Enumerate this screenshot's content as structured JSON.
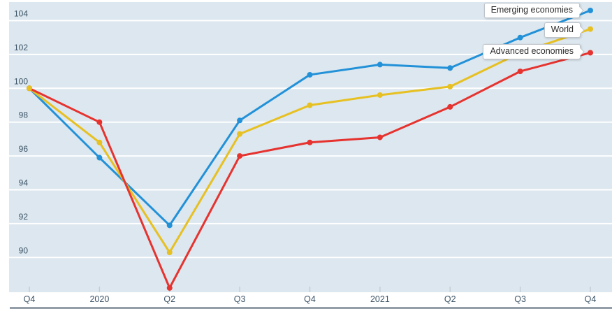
{
  "chart_data": {
    "type": "line",
    "title": "",
    "categories": [
      "Q4",
      "2020",
      "Q2",
      "Q3",
      "Q4",
      "2021",
      "Q2",
      "Q3",
      "Q4"
    ],
    "series": [
      {
        "name": "Emerging economies",
        "color": "#2291d8",
        "values": [
          100,
          95.9,
          91.9,
          98.1,
          100.8,
          101.4,
          101.2,
          103.0,
          104.6
        ]
      },
      {
        "name": "World",
        "color": "#e7c021",
        "values": [
          100,
          96.8,
          90.3,
          97.3,
          99.0,
          99.6,
          100.1,
          102.1,
          103.5
        ]
      },
      {
        "name": "Advanced economies",
        "color": "#e6332f",
        "values": [
          100,
          98.0,
          88.2,
          96.0,
          96.8,
          97.1,
          98.9,
          101.0,
          102.1
        ]
      }
    ],
    "yticks": [
      90,
      92,
      94,
      96,
      98,
      100,
      102,
      104
    ],
    "ylim": [
      88,
      105
    ],
    "grid": true,
    "legend_position": "end-of-line-callouts",
    "marker": "circle",
    "colors": {
      "plot_background": "#dce7ef",
      "gridline": "#ffffff",
      "tick_mark": "#c5ccd4",
      "axis_label": "#3d5466",
      "callout_text": "#2d2d2d",
      "bottom_bar": "#949ea9"
    }
  }
}
